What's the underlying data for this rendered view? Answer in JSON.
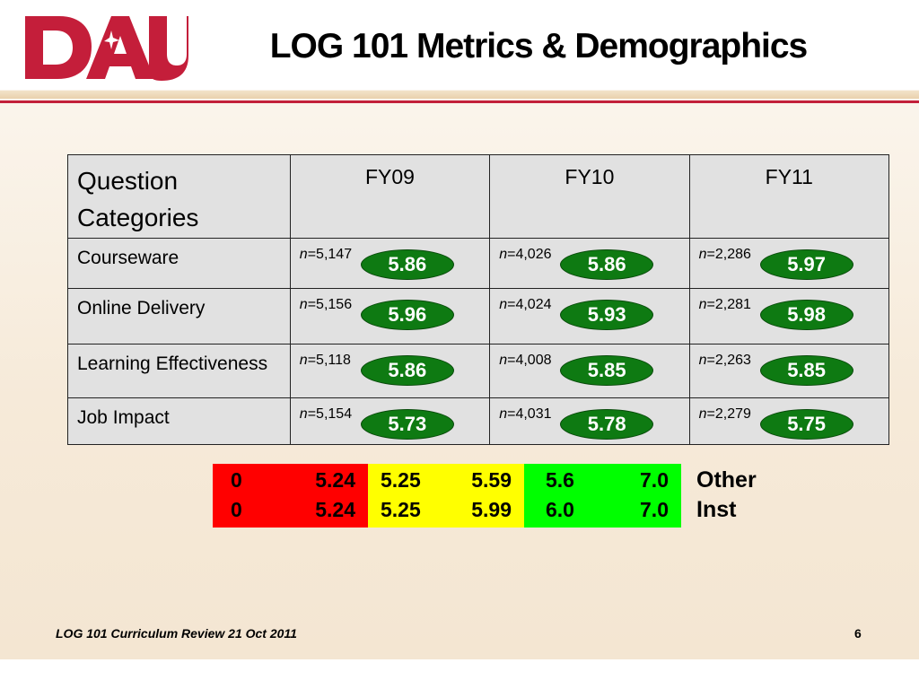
{
  "title": "LOG 101 Metrics & Demographics",
  "logo_text": "DAU",
  "table": {
    "header_category": "Question Categories",
    "years": [
      "FY09",
      "FY10",
      "FY11"
    ],
    "rows": [
      {
        "label": "Courseware",
        "cells": [
          {
            "n": "=5,147",
            "score": "5.86"
          },
          {
            "n": "=4,026",
            "score": "5.86"
          },
          {
            "n": "=2,286",
            "score": "5.97"
          }
        ]
      },
      {
        "label": "Online Delivery",
        "cells": [
          {
            "n": "=5,156",
            "score": "5.96"
          },
          {
            "n": "=4,024",
            "score": "5.93"
          },
          {
            "n": "=2,281",
            "score": "5.98"
          }
        ]
      },
      {
        "label": "Learning Effectiveness",
        "cells": [
          {
            "n": "=5,118",
            "score": "5.86"
          },
          {
            "n": "=4,008",
            "score": "5.85"
          },
          {
            "n": "=2,263",
            "score": "5.85"
          }
        ]
      },
      {
        "label": "Job Impact",
        "cells": [
          {
            "n": "=5,154",
            "score": "5.73"
          },
          {
            "n": "=4,031",
            "score": "5.78"
          },
          {
            "n": "=2,279",
            "score": "5.75"
          }
        ]
      }
    ],
    "n_symbol": "n"
  },
  "legend": {
    "bands": [
      {
        "color": "#ff0000",
        "rows": [
          [
            "0",
            "5.24"
          ],
          [
            "0",
            "5.24"
          ]
        ]
      },
      {
        "color": "#ffff00",
        "rows": [
          [
            "5.25",
            "5.59"
          ],
          [
            "5.25",
            "5.99"
          ]
        ]
      },
      {
        "color": "#00ff00",
        "rows": [
          [
            "5.6",
            "7.0"
          ],
          [
            "6.0",
            "7.0"
          ]
        ]
      }
    ],
    "labels": [
      "Other",
      "Inst"
    ]
  },
  "score_pill_color": "#0e7a12",
  "footer": {
    "left": "LOG 101 Curriculum Review 21 Oct 2011",
    "page": "6"
  }
}
